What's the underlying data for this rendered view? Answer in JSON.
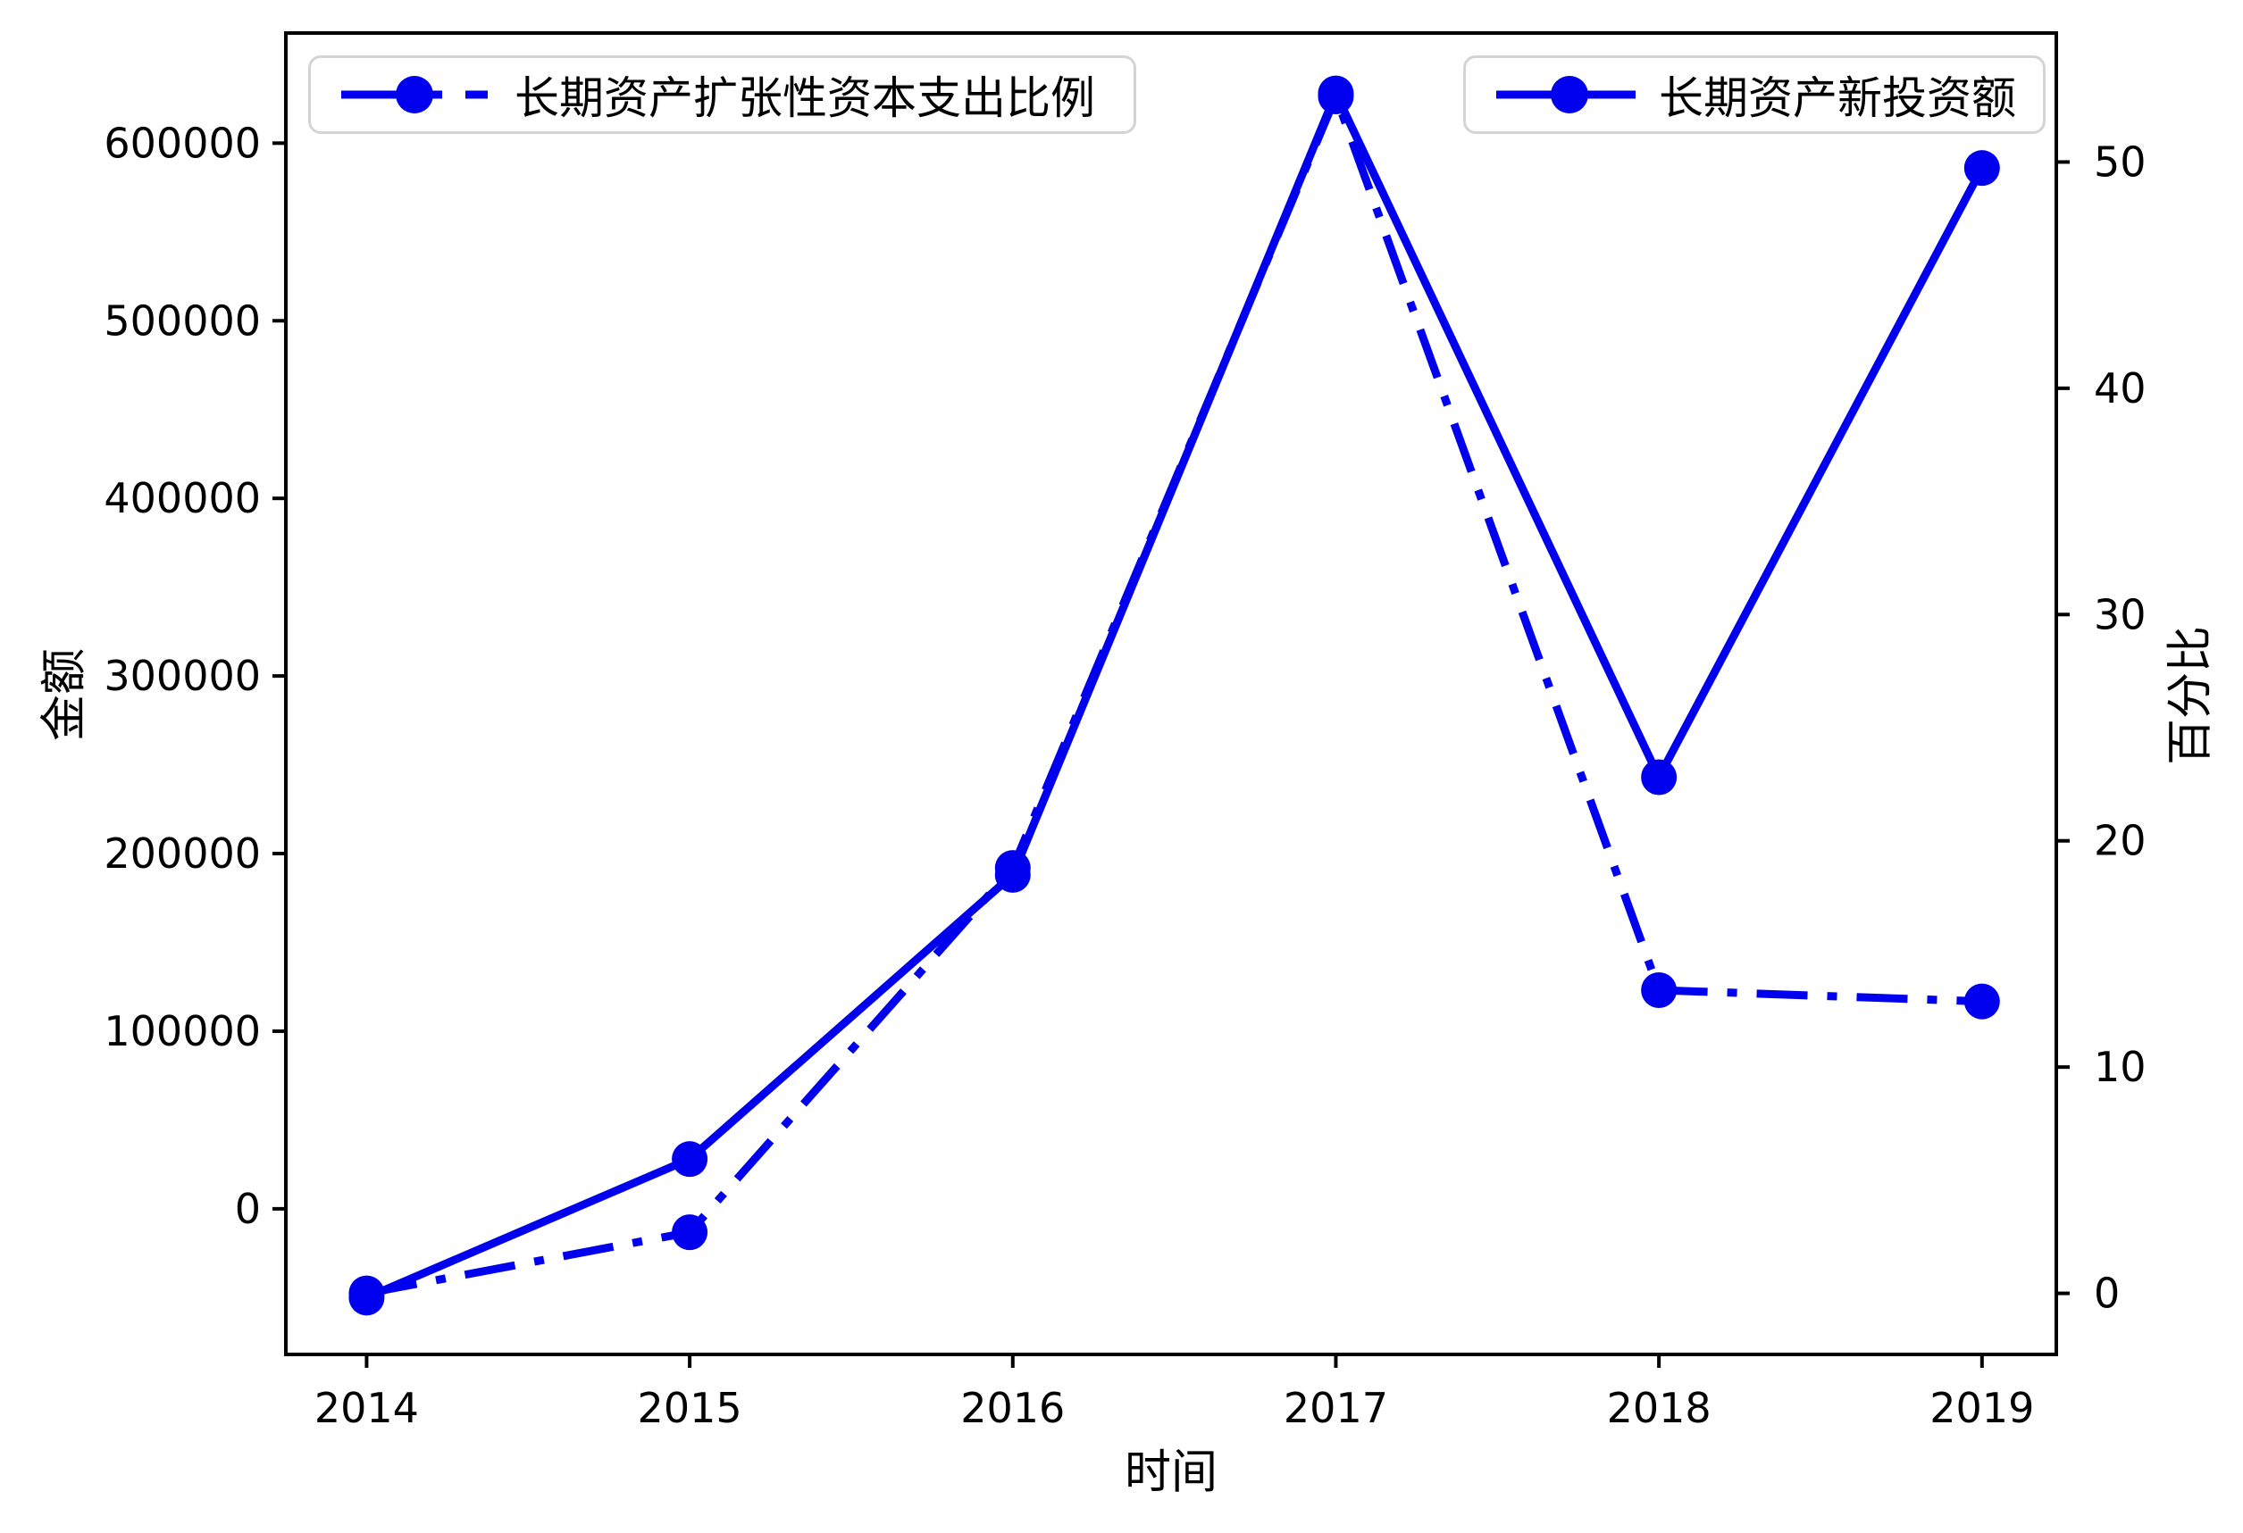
{
  "figure": {
    "background": "#ffffff",
    "accent_color": "#0000EE"
  },
  "axes": {
    "x_label": "时间",
    "y_left_label": "金额",
    "y_right_label": "百分比"
  },
  "legend": {
    "items": [
      {
        "label": "长期资产扩张性资本支出比例",
        "line_style": "dashdot"
      },
      {
        "label": "长期资产新投资额",
        "line_style": "solid"
      }
    ]
  },
  "chart_data": {
    "type": "line",
    "title": "",
    "xlabel": "时间",
    "ylabel_left": "金额",
    "ylabel_right": "百分比",
    "x": [
      2014,
      2015,
      2016,
      2017,
      2018,
      2019
    ],
    "series": [
      {
        "name": "长期资产扩张性资本支出比例",
        "axis": "right",
        "style": "dashdot",
        "unit": "percent",
        "values": [
          0,
          2.7,
          18.8,
          52.9,
          13.4,
          12.9
        ]
      },
      {
        "name": "长期资产新投资额",
        "axis": "left",
        "style": "solid",
        "unit": "amount",
        "values": [
          -50000,
          28000,
          188000,
          628000,
          243000,
          586000
        ]
      }
    ],
    "xticks": [
      2014,
      2015,
      2016,
      2017,
      2018,
      2019
    ],
    "yticks_left": [
      0,
      100000,
      200000,
      300000,
      400000,
      500000,
      600000
    ],
    "yticks_right": [
      0,
      10,
      20,
      30,
      40,
      50
    ],
    "xlim": [
      2013.75,
      2019.23
    ],
    "ylim_left": [
      -82000,
      662000
    ],
    "ylim_right": [
      -2.7,
      55.7
    ],
    "grid": false,
    "legend_position": "top",
    "color": "#0000EE"
  }
}
